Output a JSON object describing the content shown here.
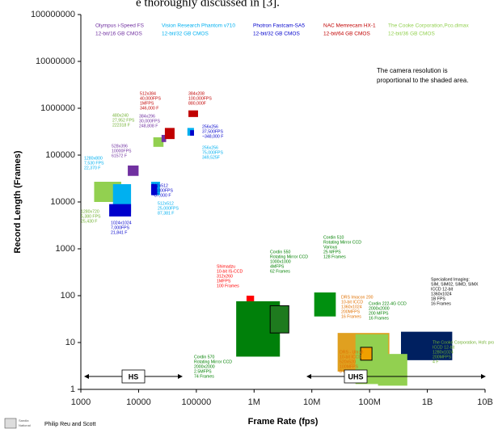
{
  "page_text": "e thoroughly discussed in [3].",
  "chart_data": {
    "type": "range_rect",
    "xlabel": "Frame Rate (fps)",
    "ylabel": "Record Length (Frames)",
    "log_x": true,
    "log_y": true,
    "xlim": [
      1000,
      10000000000
    ],
    "xticks": [
      1000,
      10000,
      100000,
      {
        "value": 1000000,
        "label": "1M"
      },
      {
        "value": 10000000,
        "label": "10M"
      },
      {
        "value": 100000000,
        "label": "100M"
      },
      {
        "value": 1000000000,
        "label": "1B"
      },
      {
        "value": 10000000000,
        "label": "10B"
      }
    ],
    "ylim": [
      1,
      100000000
    ],
    "yticks": [
      1,
      10,
      100,
      1000,
      10000,
      100000,
      1000000,
      10000000,
      100000000
    ],
    "legend": [
      {
        "name": "Olympus i-Speed FS",
        "subtitle": "12-bit/16 GB CMOS",
        "color": "#7030a0"
      },
      {
        "name": "Vision Research Phantom v710",
        "subtitle": "12-bit/32 GB CMOS",
        "color": "#00b0f0"
      },
      {
        "name": "Photron Fastcam-SA5",
        "subtitle": "12-bit/32 GB CMOS",
        "color": "#0000cc"
      },
      {
        "name": "NAC Memrecam HX-1",
        "subtitle": "12-bit/64 GB CMOS",
        "color": "#c00000"
      },
      {
        "name": "The Cooke Corporation,Pco.dimax",
        "subtitle": "12-bit/36 GB CMOS",
        "color": "#92d050"
      }
    ],
    "note": [
      "The camera resolution is",
      "proportional to the shaded area."
    ],
    "ranges": [
      {
        "label": "HS"
      },
      {
        "label": "UHS"
      }
    ],
    "credit": "Philip Reu and Scott",
    "rects": [
      {
        "x": [
          1700,
          5000
        ],
        "y": [
          10000,
          27000
        ],
        "color": "#92d050"
      },
      {
        "x": [
          3600,
          7400
        ],
        "y": [
          6000,
          24000
        ],
        "color": "#00b0f0"
      },
      {
        "x": [
          3100,
          7400
        ],
        "y": [
          4900,
          9000
        ],
        "color": "#0000cc"
      },
      {
        "x": [
          6500,
          10000
        ],
        "y": [
          36000,
          60000
        ],
        "color": "#7030a0"
      },
      {
        "x": [
          18000,
          27000
        ],
        "y": [
          150000,
          240000
        ],
        "color": "#92d050"
      },
      {
        "x": [
          25000,
          30000
        ],
        "y": [
          190000,
          270000
        ],
        "color": "#7030a0"
      },
      {
        "x": [
          28500,
          42000
        ],
        "y": [
          220000,
          380000
        ],
        "color": "#c00000"
      },
      {
        "x": [
          16500,
          23500
        ],
        "y": [
          14000,
          27000
        ],
        "color": "#00b0f0"
      },
      {
        "x": [
          16500,
          21000
        ],
        "y": [
          14000,
          24000
        ],
        "color": "#0000cc"
      },
      {
        "x": [
          70000,
          91000
        ],
        "y": [
          260000,
          380000
        ],
        "color": "#00b0f0"
      },
      {
        "x": [
          78000,
          91000
        ],
        "y": [
          260000,
          340000
        ],
        "color": "#0000cc"
      },
      {
        "x": [
          73000,
          107000
        ],
        "y": [
          650000,
          900000
        ],
        "color": "#c00000"
      },
      {
        "x": [
          490000,
          2800000
        ],
        "y": [
          5,
          76
        ],
        "color": "#00800a"
      },
      {
        "x": [
          740000,
          1000000
        ],
        "y": [
          76,
          100
        ],
        "color": "#ff0000"
      },
      {
        "x": [
          1900000,
          4000000
        ],
        "y": [
          16,
          61
        ],
        "color": "#1e7a1e",
        "outline": true
      },
      {
        "x": [
          11000000,
          26000000
        ],
        "y": [
          36,
          117
        ],
        "color": "#00900f"
      },
      {
        "x": [
          28000000,
          220000000
        ],
        "y": [
          2.4,
          16
        ],
        "color": "#e0a020"
      },
      {
        "x": [
          57000000,
          210000000
        ],
        "y": [
          1.3,
          15
        ],
        "color": "#92d050"
      },
      {
        "x": [
          70000000,
          110000000
        ],
        "y": [
          4.2,
          7.9
        ],
        "color": "#f0a000",
        "outline": true
      },
      {
        "x": [
          350000000,
          2700000000
        ],
        "y": [
          4.2,
          17
        ],
        "color": "#002060"
      },
      {
        "x": [
          140000000,
          450000000
        ],
        "y": [
          1.2,
          5.7
        ],
        "color": "#92d050"
      }
    ],
    "annotations": [
      {
        "color": "#00b0f0",
        "lines": [
          "1280x800",
          "7,530 FPS",
          "22,370 F"
        ]
      },
      {
        "color": "#70b030",
        "lines": [
          "1280x720",
          "5,380 FPS",
          "25,430 F"
        ]
      },
      {
        "color": "#0000cc",
        "lines": [
          "1024x1024",
          "7,000FPS",
          "21,841 F"
        ]
      },
      {
        "color": "#7030a0",
        "lines": [
          "528x396",
          "10000FPS",
          "61572 F"
        ]
      },
      {
        "color": "#70b030",
        "lines": [
          "480x240",
          "27,952 FPS",
          "222318 F"
        ]
      },
      {
        "color": "#7030a0",
        "lines": [
          "384x296",
          "30,000FPS",
          "248,808 F"
        ]
      },
      {
        "color": "#c00000",
        "lines": [
          "512x384",
          "40,000FPS",
          "1MFPS",
          "346,000 F"
        ]
      },
      {
        "color": "#c00000",
        "lines": [
          "384x208",
          "100,000FPS",
          "880,000F"
        ]
      },
      {
        "color": "#0000cc",
        "lines": [
          "256x256",
          "37,500FPS",
          "~348,000 F"
        ]
      },
      {
        "color": "#00b0f0",
        "lines": [
          "256x256",
          "75,000FPS",
          "349,525F"
        ]
      },
      {
        "color": "#0000cc",
        "lines": [
          "512x512",
          "25,000FPS",
          "~87,000 F"
        ]
      },
      {
        "color": "#00b0f0",
        "lines": [
          "512x512",
          "25,000FPS",
          "87,381 F"
        ]
      },
      {
        "color": "#ff0000",
        "lines": [
          "Shimadzu",
          "10-bit IS-CCD",
          "312x260",
          "1MFPS",
          "100 Frames"
        ]
      },
      {
        "color": "#008000",
        "lines": [
          "Cordin 550",
          "Rotating Mirror CCD",
          "1000x1000",
          "4MFPS",
          "62 Frames"
        ]
      },
      {
        "color": "#008000",
        "lines": [
          "Cordin 510",
          "Rotating Mirror CCD",
          "Various",
          "25 MFPS",
          "128 Frames"
        ]
      },
      {
        "color": "#e07000",
        "lines": [
          "DRS Imacon 200",
          "10-bit ICCD",
          "1360x1024",
          "200MFPS",
          "16 Frames"
        ]
      },
      {
        "color": "#008000",
        "lines": [
          "Cordin 222-4G CCD",
          "2000x2000",
          "200 MFPS",
          "16 Frames"
        ]
      },
      {
        "color": "#000000",
        "lines": [
          "Specialised Imaging:",
          "SIM, SIM02, SIMD, SIMX",
          "ICCD 12-bit",
          "1360x1024",
          "1B FPS",
          "16 Frames"
        ]
      },
      {
        "color": "#70b030",
        "lines": [
          "The Cooke Corporation, Hsfc pro",
          "ICCD 12-bit",
          "1280x1024",
          "200MFPS",
          "4 F"
        ]
      },
      {
        "color": "#e07000",
        "lines": [
          "DRS - Ultra8",
          "10-bit ICCD",
          "520x520",
          "100MFPS",
          "8 Frames"
        ]
      },
      {
        "color": "#008000",
        "lines": [
          "Cordin 570",
          "Rotating Mirror CCD",
          "2000x2000",
          "2.5MFPS",
          "74 Frames"
        ]
      }
    ]
  }
}
